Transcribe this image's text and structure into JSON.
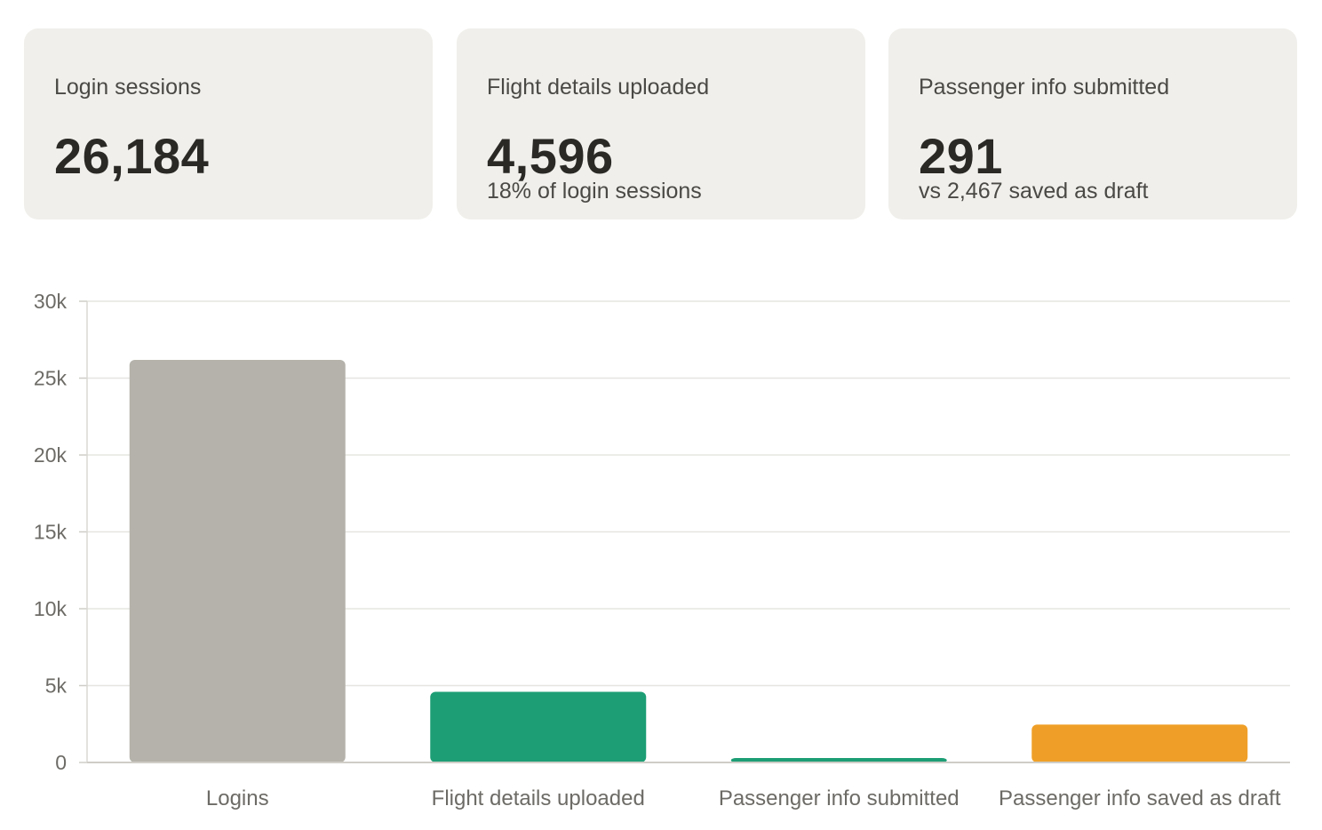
{
  "cards": [
    {
      "label": "Login sessions",
      "value": "26,184",
      "sub": ""
    },
    {
      "label": "Flight details uploaded",
      "value": "4,596",
      "sub": "18% of login sessions"
    },
    {
      "label": "Passenger info submitted",
      "value": "291",
      "sub": "vs 2,467 saved as draft"
    }
  ],
  "colors": {
    "grey": "#b4b2aa",
    "green": "#1d9e75",
    "orange": "#ef9f27"
  },
  "chart_data": {
    "type": "bar",
    "categories": [
      "Logins",
      "Flight details uploaded",
      "Passenger info submitted",
      "Passenger info saved as draft"
    ],
    "values": [
      26184,
      4596,
      291,
      2467
    ],
    "colors": [
      "#b4b2aa",
      "#1d9e75",
      "#1d9e75",
      "#ef9f27"
    ],
    "yticks": [
      {
        "value": 0,
        "label": "0"
      },
      {
        "value": 5000,
        "label": "5k"
      },
      {
        "value": 10000,
        "label": "10k"
      },
      {
        "value": 15000,
        "label": "15k"
      },
      {
        "value": 20000,
        "label": "20k"
      },
      {
        "value": 25000,
        "label": "25k"
      },
      {
        "value": 30000,
        "label": "30k"
      }
    ],
    "ylim": [
      0,
      30000
    ],
    "grid": true,
    "title": "",
    "xlabel": "",
    "ylabel": ""
  }
}
